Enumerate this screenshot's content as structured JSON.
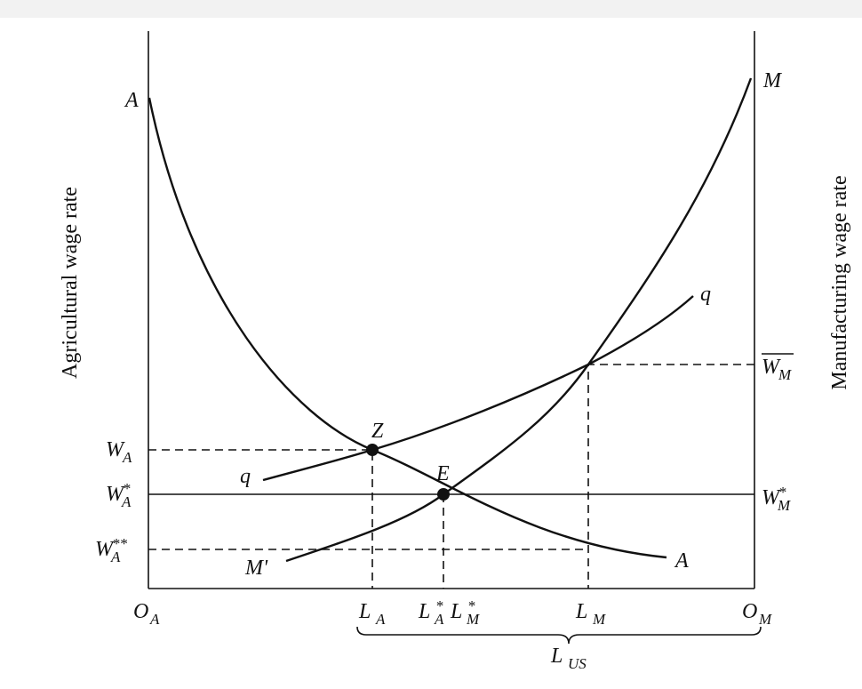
{
  "axis_titles": {
    "left": "Agricultural wage rate",
    "right": "Manufacturing wage rate"
  },
  "curve_labels": {
    "a_top": "A",
    "a_bottom": "A",
    "m_top": "M",
    "m_bottom": "M'",
    "q_right": "q",
    "q_left": "q",
    "point_z": "Z",
    "point_e": "E"
  },
  "left_labels": {
    "w_a": {
      "letter": "W",
      "sub": "A"
    },
    "w_a_star": {
      "letter": "W",
      "sup": "*",
      "sub": "A"
    },
    "w_a_starstar": {
      "letter": "W",
      "sup": "**",
      "sub": "A"
    }
  },
  "right_labels": {
    "w_m_bar": {
      "letter": "W",
      "sub": "M"
    },
    "w_m_star": {
      "letter": "W",
      "sup": "*",
      "sub": "M"
    }
  },
  "bottom_labels": {
    "o_a": {
      "letter": "O",
      "sub": "A"
    },
    "l_a": {
      "letter": "L",
      "sub": "A"
    },
    "l_a_star": {
      "letter": "L",
      "sup": "*",
      "sub": "A"
    },
    "l_m_star": {
      "letter": "L",
      "sup": "*",
      "sub": "M"
    },
    "l_m": {
      "letter": "L",
      "sub": "M"
    },
    "o_m": {
      "letter": "O",
      "sub": "M"
    },
    "l_us": {
      "letter": "L",
      "sub": "US"
    }
  }
}
